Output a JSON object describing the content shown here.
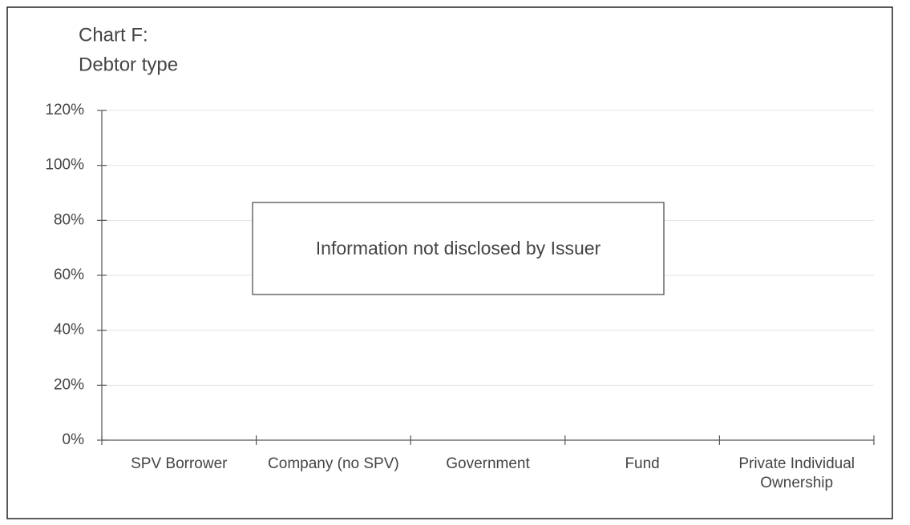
{
  "chart_data": {
    "type": "bar",
    "title": [
      "Chart F:",
      "Debtor type"
    ],
    "categories": [
      "SPV Borrower",
      "Company (no SPV)",
      "Government",
      "Fund",
      "Private Individual Ownership"
    ],
    "ylim": [
      0,
      120
    ],
    "yticks": [
      {
        "value": 0,
        "label": "0%"
      },
      {
        "value": 20,
        "label": "20%"
      },
      {
        "value": 40,
        "label": "40%"
      },
      {
        "value": 60,
        "label": "60%"
      },
      {
        "value": 80,
        "label": "80%"
      },
      {
        "value": 100,
        "label": "100%"
      },
      {
        "value": 120,
        "label": "120%"
      }
    ],
    "grid": true,
    "annotation": "Information not disclosed by Issuer"
  }
}
